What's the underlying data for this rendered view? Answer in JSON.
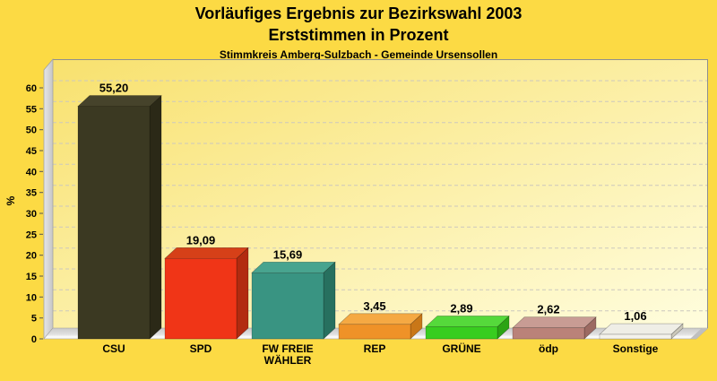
{
  "title": {
    "line1": "Vorläufiges Ergebnis zur Bezirkswahl 2003",
    "line2": "Erststimmen in Prozent",
    "subtitle": "Stimmkreis Amberg-Sulzbach - Gemeinde Ursensollen"
  },
  "colors": {
    "page_bg": "#FCDA44",
    "plot_bg_start": "#F8E16E",
    "plot_bg_end": "#FFFDDE",
    "grid": "#CCC8BE",
    "wall": "#D6D6D6",
    "wall_edge": "#A0A0A0",
    "floor_top": "#C9C9C9",
    "floor_bottom": "#F2F2F2",
    "plot_border": "#8F8F8F",
    "text": "#000000"
  },
  "chart_data": {
    "type": "bar",
    "style": "3d-column",
    "title": "Vorläufiges Ergebnis zur Bezirkswahl 2003 — Erststimmen in Prozent",
    "subtitle": "Stimmkreis Amberg-Sulzbach - Gemeinde Ursensollen",
    "categories": [
      "CSU",
      "SPD",
      "FW FREIE WÄHLER",
      "REP",
      "GRÜNE",
      "ödp",
      "Sonstige"
    ],
    "values": [
      55.2,
      19.09,
      15.69,
      3.45,
      2.89,
      2.62,
      1.06
    ],
    "value_labels": [
      "55,20",
      "19,09",
      "15,69",
      "3,45",
      "2,89",
      "2,62",
      "1,06"
    ],
    "xlabel": "",
    "ylabel": "%",
    "ylim": [
      0,
      65
    ],
    "yticks": [
      0,
      5,
      10,
      15,
      20,
      25,
      30,
      35,
      40,
      45,
      50,
      55,
      60
    ],
    "grid": "horizontal-dashed",
    "legend": "none",
    "bar_colors": [
      {
        "name": "CSU",
        "front": "#3B3922",
        "top": "#46432B",
        "side": "#2B2917"
      },
      {
        "name": "SPD",
        "front": "#F03517",
        "top": "#D64018",
        "side": "#B22B10"
      },
      {
        "name": "FW",
        "front": "#399482",
        "top": "#48A48F",
        "side": "#27705F"
      },
      {
        "name": "REP",
        "front": "#EF9228",
        "top": "#F5A943",
        "side": "#C97718"
      },
      {
        "name": "GRUENE",
        "front": "#38CD1F",
        "top": "#55D93B",
        "side": "#2BA414"
      },
      {
        "name": "OEDP",
        "front": "#BA8279",
        "top": "#C89C94",
        "side": "#9C6A62"
      },
      {
        "name": "Sonstige",
        "front": "#F4F2EC",
        "top": "#EFEEE6",
        "side": "#CBC8BB"
      }
    ]
  }
}
